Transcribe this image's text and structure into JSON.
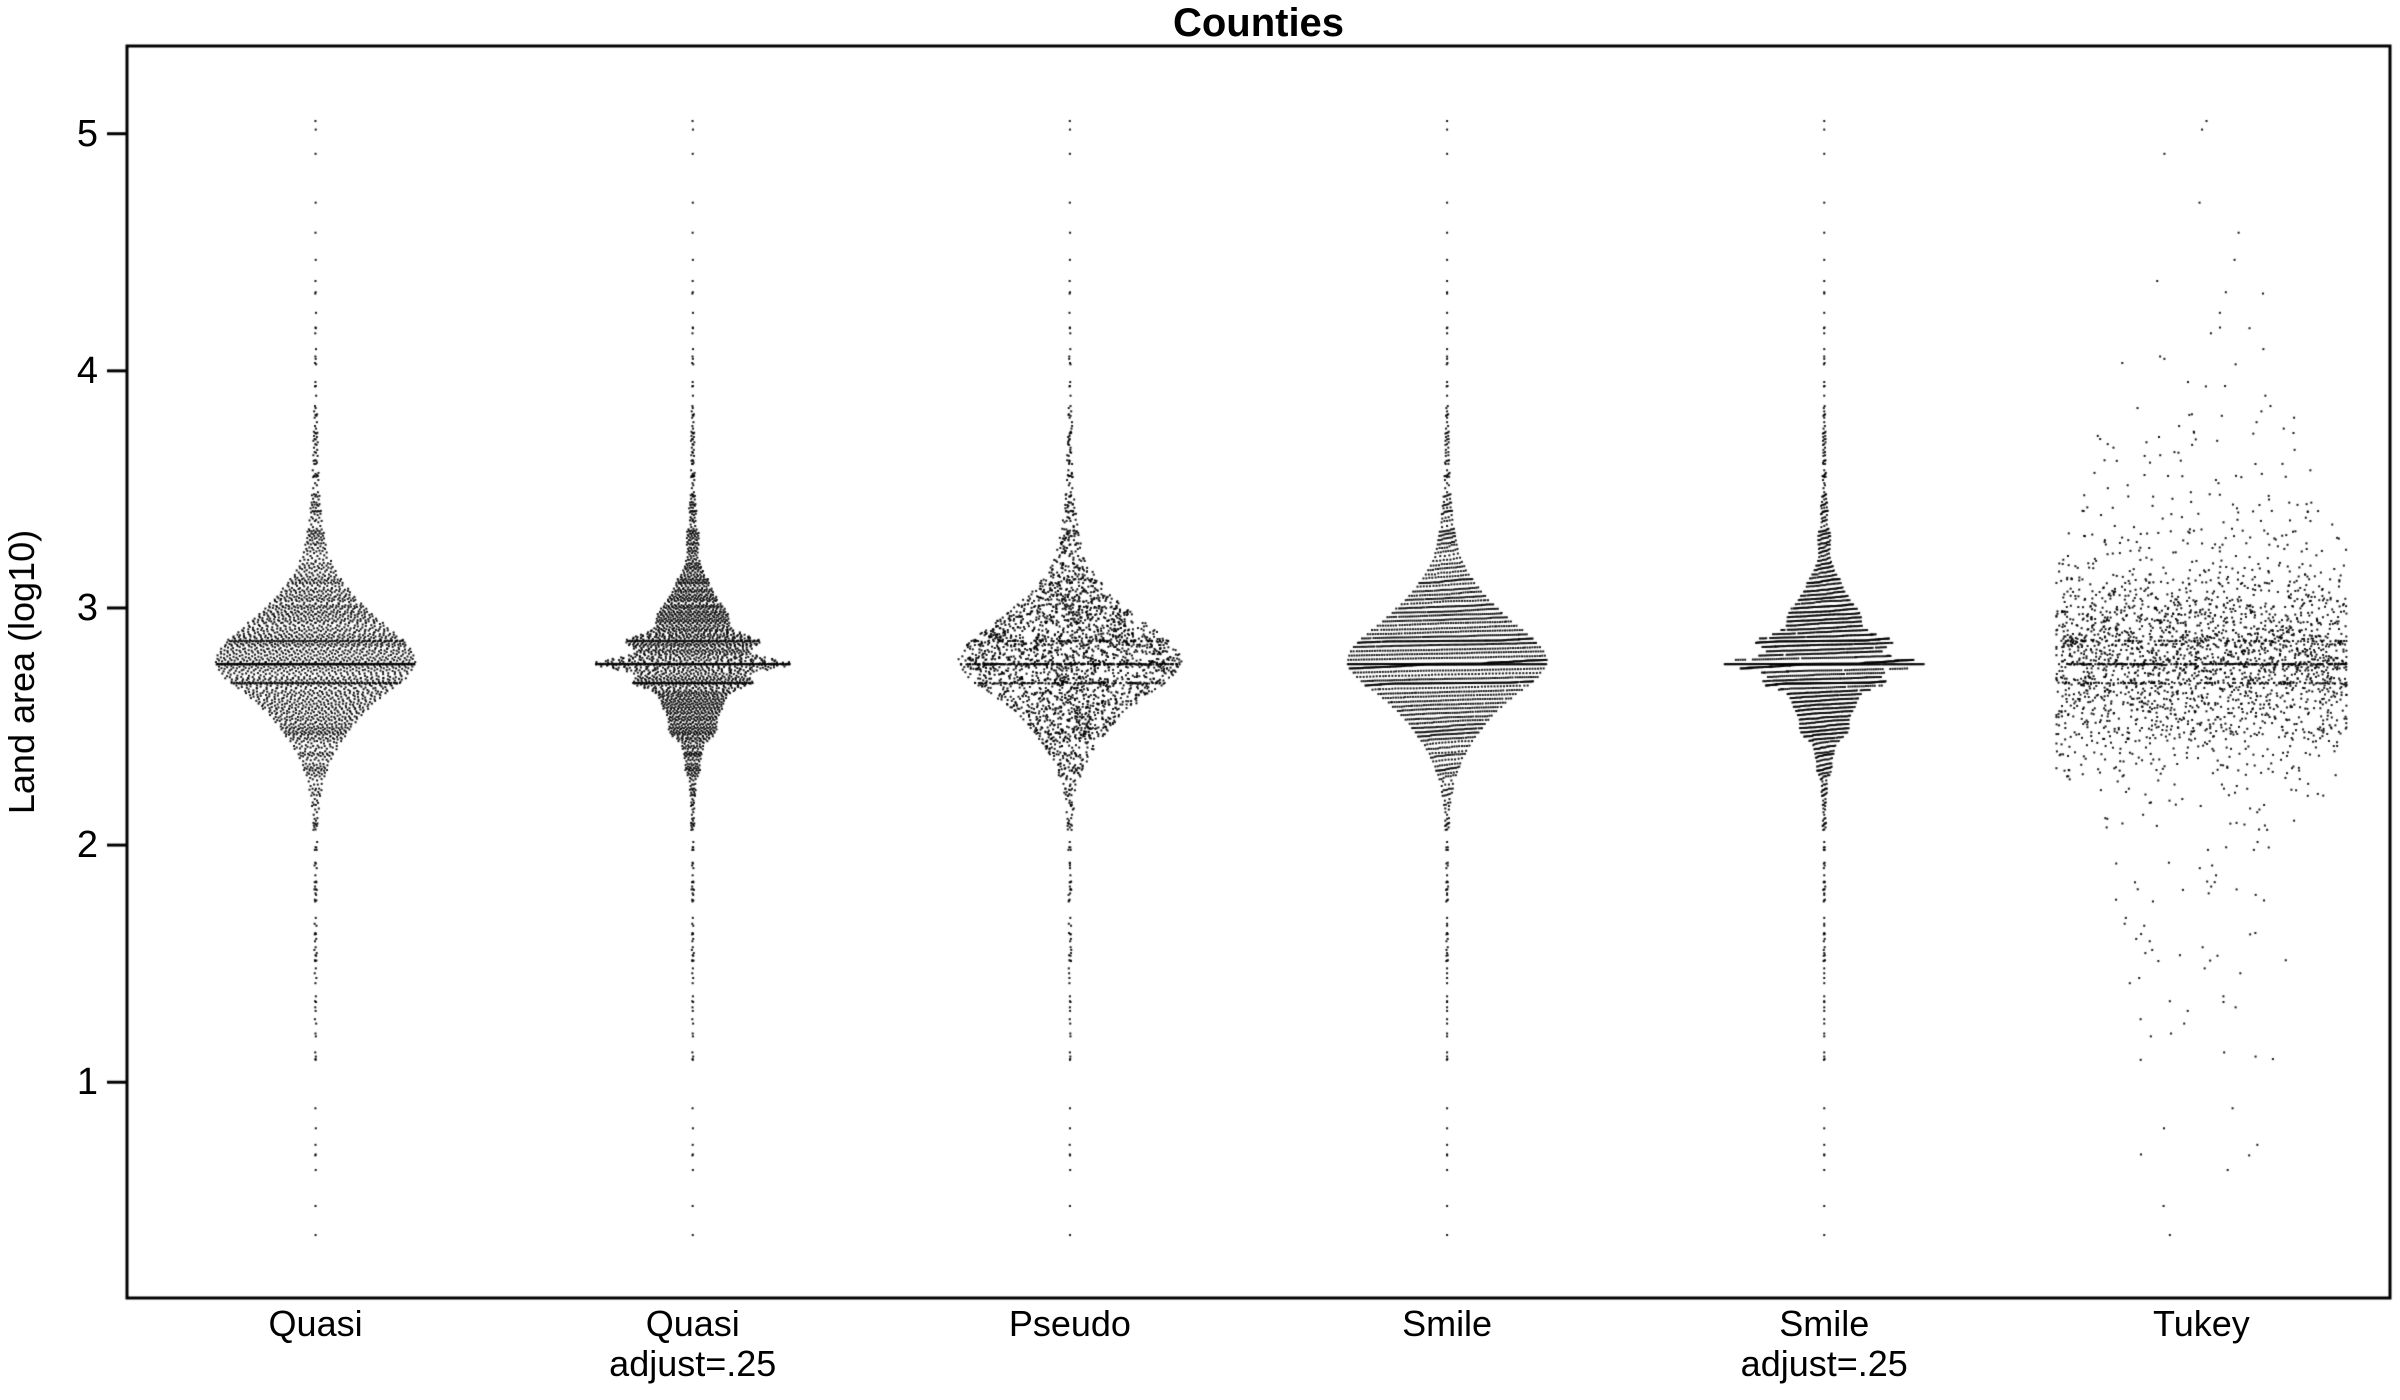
{
  "page": {
    "background": "#ffffff"
  },
  "chart_data": {
    "type": "scatter",
    "subtype": "beeswarm-comparison",
    "title": "Counties",
    "xlabel": "",
    "ylabel": "Land area (log10)",
    "categories": [
      {
        "label": "Quasi",
        "sublabel": ""
      },
      {
        "label": "Quasi",
        "sublabel": "adjust=.25"
      },
      {
        "label": "Pseudo",
        "sublabel": ""
      },
      {
        "label": "Smile",
        "sublabel": ""
      },
      {
        "label": "Smile",
        "sublabel": "adjust=.25"
      },
      {
        "label": "Tukey",
        "sublabel": ""
      }
    ],
    "methods": [
      "quasirandom",
      "quasirandom-adjust",
      "pseudorandom",
      "smile",
      "smile-adjust",
      "tukey-texture"
    ],
    "yticks": [
      1,
      2,
      3,
      4,
      5
    ],
    "ylim": [
      0.09,
      5.37
    ],
    "n_points": 3000,
    "distribution": {
      "description": "log10 land area of US counties; identical data rendered with six point-layout methods",
      "center": 2.78,
      "core_sd": 0.2,
      "core_weight": 0.65,
      "skew_mean": 2.92,
      "skew_sd": 0.42,
      "skew_weight": 0.13,
      "tail_mean": 2.7,
      "tail_sd": 1.05,
      "tail_weight": 0.08,
      "spikes": [
        {
          "value": 2.763,
          "weight": 0.08
        },
        {
          "value": 2.683,
          "weight": 0.03
        },
        {
          "value": 2.861,
          "weight": 0.03
        }
      ],
      "min": 0.28,
      "max": 5.18
    },
    "style": {
      "background": "#ffffff",
      "dot_color": "#000000",
      "dot_size": 2,
      "axis_color": "#000000",
      "half_widths": [
        100,
        98,
        112,
        100,
        100,
        145
      ],
      "kde_bandwidth": 0.09,
      "kde_bandwidth_adjust25": 0.0225,
      "legend": "none",
      "grid": "off"
    }
  }
}
